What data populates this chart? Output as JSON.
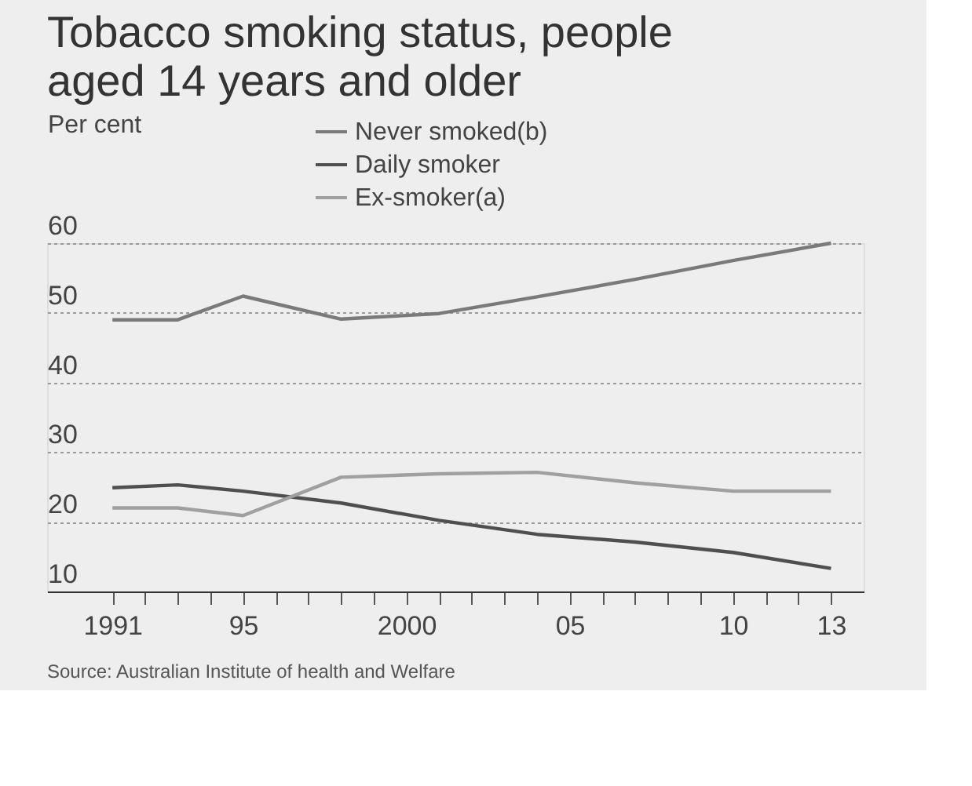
{
  "chart_data": {
    "type": "line",
    "title": "Tobacco smoking status, people aged 14 years and older",
    "ylabel": "Per cent",
    "x": [
      1991,
      1993,
      1995,
      1998,
      2001,
      2004,
      2007,
      2010,
      2013
    ],
    "series": [
      {
        "name": "Never smoked(b)",
        "color": "#7a7a7a",
        "values": [
          49,
          49,
          52.4,
          49.1,
          49.9,
          52.3,
          54.8,
          57.5,
          60
        ]
      },
      {
        "name": "Daily smoker",
        "color": "#4f4f4f",
        "values": [
          24.9,
          25.3,
          24.4,
          22.7,
          20.2,
          18.2,
          17.1,
          15.6,
          13.3
        ]
      },
      {
        "name": "Ex-smoker(a)",
        "color": "#a0a0a0",
        "values": [
          22,
          22,
          20.9,
          26.4,
          26.9,
          27.1,
          25.6,
          24.4,
          24.4
        ]
      }
    ],
    "xlim": [
      1989,
      2014
    ],
    "xticks": [
      {
        "value": 1991,
        "label": "1991"
      },
      {
        "value": 1992,
        "label": null
      },
      {
        "value": 1993,
        "label": null
      },
      {
        "value": 1994,
        "label": null
      },
      {
        "value": 1995,
        "label": "95"
      },
      {
        "value": 1996,
        "label": null
      },
      {
        "value": 1997,
        "label": null
      },
      {
        "value": 1998,
        "label": null
      },
      {
        "value": 1999,
        "label": null
      },
      {
        "value": 2000,
        "label": "2000"
      },
      {
        "value": 2001,
        "label": null
      },
      {
        "value": 2002,
        "label": null
      },
      {
        "value": 2003,
        "label": null
      },
      {
        "value": 2004,
        "label": null
      },
      {
        "value": 2005,
        "label": "05"
      },
      {
        "value": 2006,
        "label": null
      },
      {
        "value": 2007,
        "label": null
      },
      {
        "value": 2008,
        "label": null
      },
      {
        "value": 2009,
        "label": null
      },
      {
        "value": 2010,
        "label": "10"
      },
      {
        "value": 2011,
        "label": null
      },
      {
        "value": 2012,
        "label": null
      },
      {
        "value": 2013,
        "label": "13"
      }
    ],
    "ylim": [
      10,
      60
    ],
    "yticks": [
      10,
      20,
      30,
      40,
      50,
      60
    ],
    "grid": "y",
    "legend": "top",
    "marker": "none",
    "line_style": "solid",
    "annotations": [
      "Source: Australian Institute of health and Welfare"
    ]
  }
}
